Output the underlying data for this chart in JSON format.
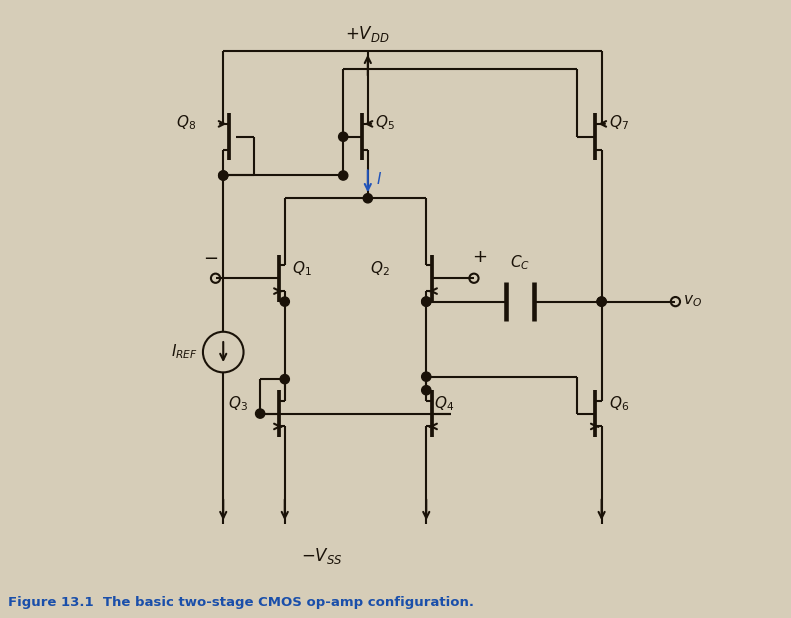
{
  "bg_color": "#d6cdb8",
  "line_color": "#1a1208",
  "blue_color": "#2255bb",
  "caption": "Figure 13.1  The basic two-stage CMOS op-amp configuration.",
  "caption_color": "#1a4faa",
  "figsize": [
    7.91,
    6.18
  ],
  "dpi": 100,
  "xlim": [
    0,
    10
  ],
  "ylim": [
    0,
    10
  ],
  "vdd_label": "+V_{DD}",
  "vss_label": "-V_{SS}",
  "I_label": "I",
  "iref_label": "I_{REF}",
  "vo_label": "v_O",
  "cc_label": "C_C"
}
